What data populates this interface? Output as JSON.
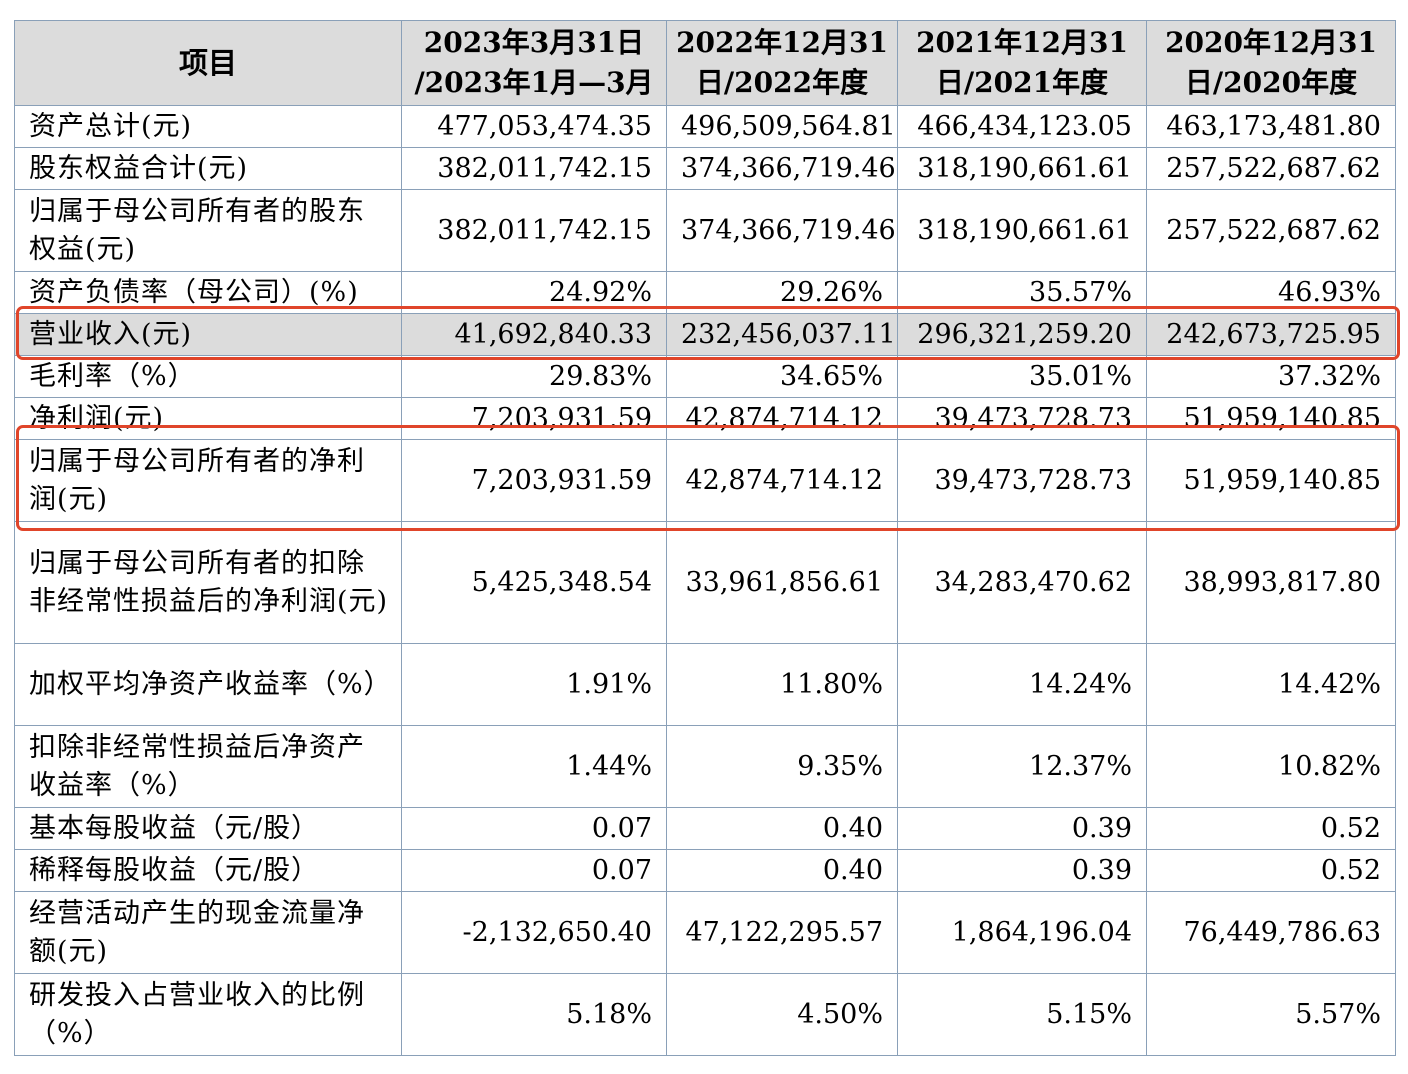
{
  "header": {
    "item": "项目",
    "col1": [
      "2023年3月31日",
      "/2023年1月—3月"
    ],
    "col2": [
      "2022年12月31",
      "日/2022年度"
    ],
    "col3": [
      "2021年12月31",
      "日/2021年度"
    ],
    "col4": [
      "2020年12月31",
      "日/2020年度"
    ]
  },
  "rows": [
    {
      "label": "资产总计(元)",
      "values": [
        "477,053,474.35",
        "496,509,564.81",
        "466,434,123.05",
        "463,173,481.80"
      ]
    },
    {
      "label": "股东权益合计(元)",
      "values": [
        "382,011,742.15",
        "374,366,719.46",
        "318,190,661.61",
        "257,522,687.62"
      ]
    },
    {
      "label": "归属于母公司所有者的股东权益(元)",
      "values": [
        "382,011,742.15",
        "374,366,719.46",
        "318,190,661.61",
        "257,522,687.62"
      ]
    },
    {
      "label": "资产负债率（母公司）(%)",
      "values": [
        "24.92%",
        "29.26%",
        "35.57%",
        "46.93%"
      ]
    },
    {
      "label": "营业收入(元)",
      "values": [
        "41,692,840.33",
        "232,456,037.11",
        "296,321,259.20",
        "242,673,725.95"
      ]
    },
    {
      "label": "毛利率（%）",
      "values": [
        "29.83%",
        "34.65%",
        "35.01%",
        "37.32%"
      ]
    },
    {
      "label": "净利润(元)",
      "values": [
        "7,203,931.59",
        "42,874,714.12",
        "39,473,728.73",
        "51,959,140.85"
      ]
    },
    {
      "label": "归属于母公司所有者的净利润(元)",
      "values": [
        "7,203,931.59",
        "42,874,714.12",
        "39,473,728.73",
        "51,959,140.85"
      ]
    },
    {
      "label": "归属于母公司所有者的扣除非经常性损益后的净利润(元)",
      "values": [
        "5,425,348.54",
        "33,961,856.61",
        "34,283,470.62",
        "38,993,817.80"
      ]
    },
    {
      "label": "加权平均净资产收益率（%）",
      "values": [
        "1.91%",
        "11.80%",
        "14.24%",
        "14.42%"
      ]
    },
    {
      "label": "扣除非经常性损益后净资产收益率（%）",
      "values": [
        "1.44%",
        "9.35%",
        "12.37%",
        "10.82%"
      ]
    },
    {
      "label": "基本每股收益（元/股）",
      "values": [
        "0.07",
        "0.40",
        "0.39",
        "0.52"
      ]
    },
    {
      "label": "稀释每股收益（元/股）",
      "values": [
        "0.07",
        "0.40",
        "0.39",
        "0.52"
      ]
    },
    {
      "label": "经营活动产生的现金流量净额(元)",
      "values": [
        "-2,132,650.40",
        "47,122,295.57",
        "1,864,196.04",
        "76,449,786.63"
      ]
    },
    {
      "label": "研发投入占营业收入的比例（%）",
      "values": [
        "5.18%",
        "4.50%",
        "5.15%",
        "5.57%"
      ]
    }
  ],
  "colors": {
    "header_bg": "#dcdcdc",
    "border": "#8aa0b8",
    "highlight": "#e0452a"
  }
}
